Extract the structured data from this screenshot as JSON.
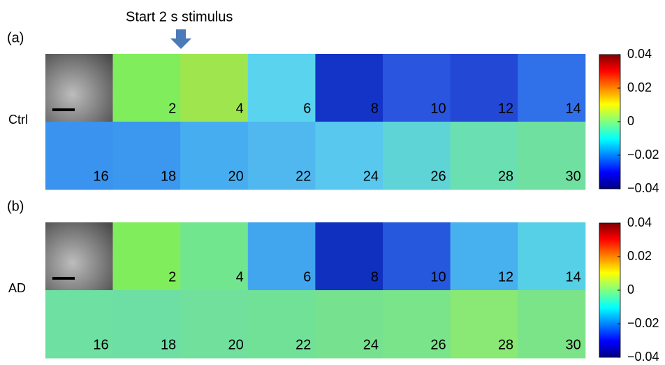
{
  "annotation": "Start 2 s stimulus",
  "panels": [
    {
      "label": "(a)",
      "row_label": "Ctrl",
      "frames": [
        "2",
        "4",
        "6",
        "8",
        "10",
        "12",
        "14",
        "16",
        "18",
        "20",
        "22",
        "24",
        "26",
        "28",
        "30"
      ],
      "colorbar_ticks": [
        "0.04",
        "0.02",
        "0",
        "−0.02",
        "−0.04"
      ]
    },
    {
      "label": "(b)",
      "row_label": "AD",
      "frames": [
        "2",
        "4",
        "6",
        "8",
        "10",
        "12",
        "14",
        "16",
        "18",
        "20",
        "22",
        "24",
        "26",
        "28",
        "30"
      ],
      "colorbar_ticks": [
        "0.04",
        "0.02",
        "0",
        "−0.02",
        "−0.04"
      ]
    }
  ]
}
